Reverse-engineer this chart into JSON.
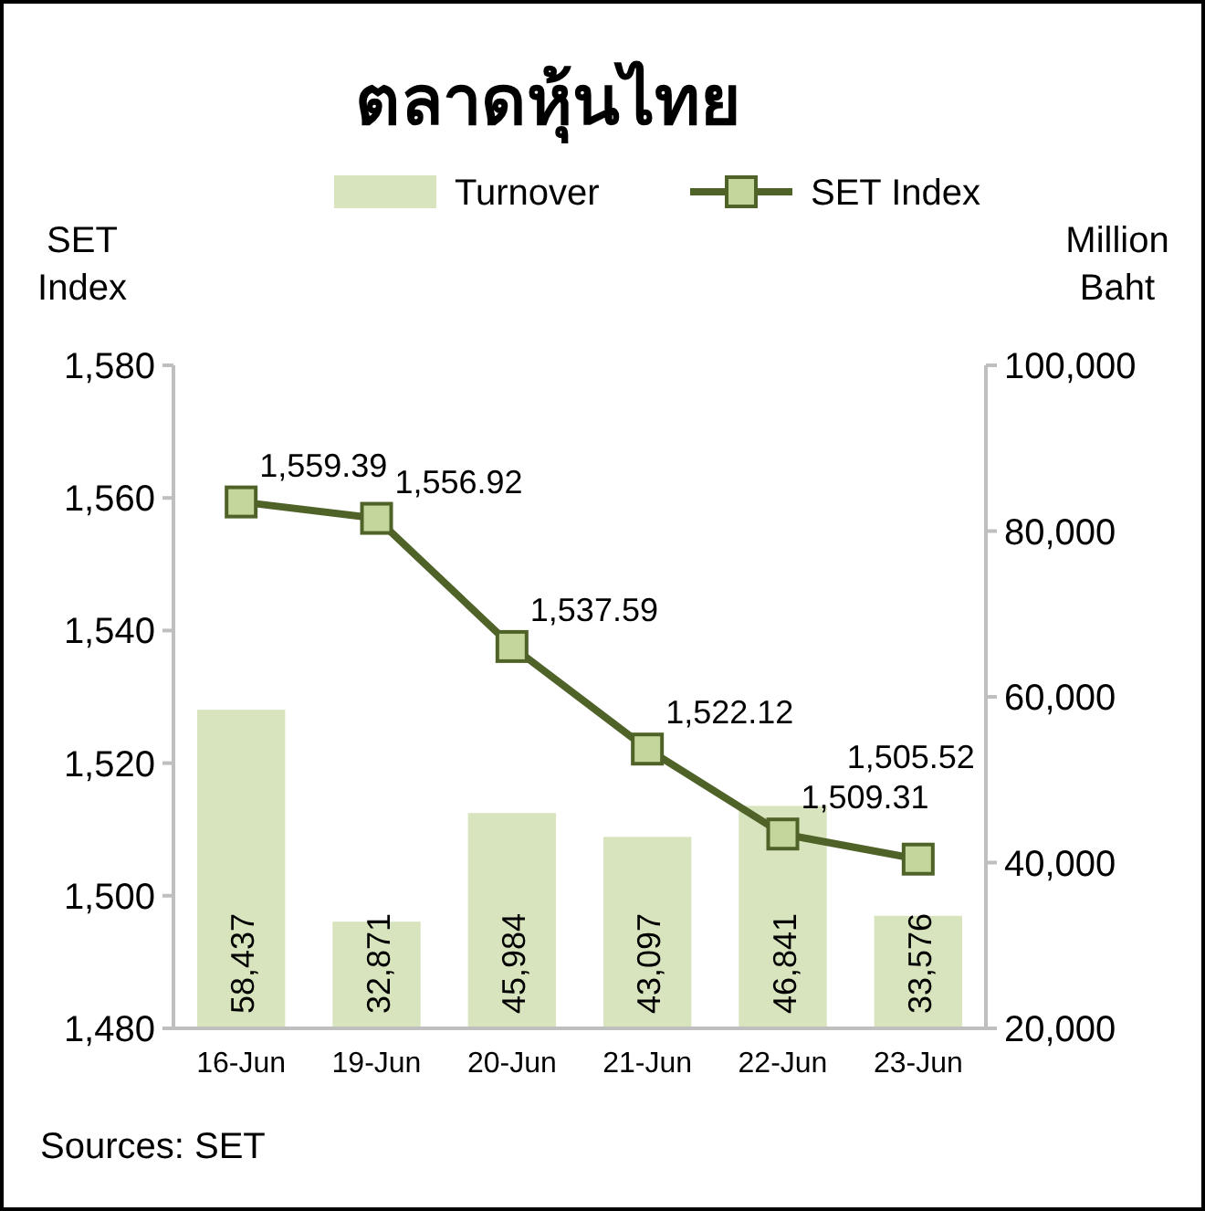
{
  "chart_data": {
    "type": "bar",
    "title": "ตลาดหุ้นไทย",
    "ylabel": "SET Index",
    "y2label": "Million Baht",
    "categories": [
      "16-Jun",
      "19-Jun",
      "20-Jun",
      "21-Jun",
      "22-Jun",
      "23-Jun"
    ],
    "series": [
      {
        "name": "Turnover",
        "axis": "y2",
        "color": "#d7e4bd",
        "values": [
          58437,
          32871,
          45984,
          43097,
          46841,
          33576
        ],
        "value_labels": [
          "58,437",
          "32,871",
          "45,984",
          "43,097",
          "46,841",
          "33,576"
        ]
      },
      {
        "name": "SET Index",
        "type": "line",
        "axis": "y",
        "color": "#4f6228",
        "marker": "square",
        "values": [
          1559.39,
          1556.92,
          1537.59,
          1522.12,
          1509.31,
          1505.52
        ],
        "value_labels": [
          "1,559.39",
          "1,556.92",
          "1,537.59",
          "1,522.12",
          "1,509.31",
          "1,505.52"
        ]
      }
    ],
    "ylim": [
      1480,
      1580
    ],
    "yticks": [
      {
        "value": 1480,
        "label": "1,480"
      },
      {
        "value": 1500,
        "label": "1,500"
      },
      {
        "value": 1520,
        "label": "1,520"
      },
      {
        "value": 1540,
        "label": "1,540"
      },
      {
        "value": 1560,
        "label": "1,560"
      },
      {
        "value": 1580,
        "label": "1,580"
      }
    ],
    "y2lim": [
      20000,
      100000
    ],
    "y2ticks": [
      {
        "value": 20000,
        "label": "20,000"
      },
      {
        "value": 40000,
        "label": "40,000"
      },
      {
        "value": 60000,
        "label": "60,000"
      },
      {
        "value": 80000,
        "label": "80,000"
      },
      {
        "value": 100000,
        "label": "100,000"
      }
    ],
    "legend": "top",
    "grid": false,
    "annotations": [
      "Sources: SET"
    ]
  }
}
